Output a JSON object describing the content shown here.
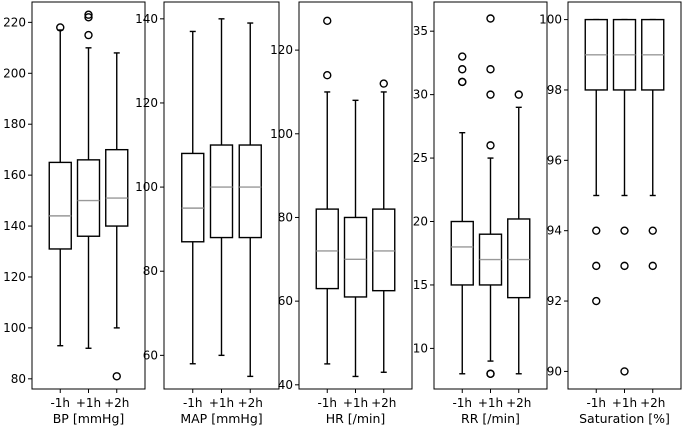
{
  "chart_data": [
    {
      "type": "box",
      "xlabel": "BP [mmHg]",
      "categories": [
        "-1h",
        "+1h",
        "+2h"
      ],
      "yticks": [
        80,
        100,
        120,
        140,
        160,
        180,
        200,
        220
      ],
      "ylim": [
        76,
        228
      ],
      "boxes": [
        {
          "whislo": 93,
          "q1": 131,
          "med": 144,
          "q3": 165,
          "whishi": 217,
          "fliers": [
            218
          ]
        },
        {
          "whislo": 92,
          "q1": 136,
          "med": 150,
          "q3": 166,
          "whishi": 210,
          "fliers": [
            215,
            222,
            223
          ]
        },
        {
          "whislo": 100,
          "q1": 140,
          "med": 151,
          "q3": 170,
          "whishi": 208,
          "fliers": [
            81
          ]
        }
      ]
    },
    {
      "type": "box",
      "xlabel": "MAP [mmHg]",
      "categories": [
        "-1h",
        "+1h",
        "+2h"
      ],
      "yticks": [
        60,
        80,
        100,
        120,
        140
      ],
      "ylim": [
        52,
        144
      ],
      "boxes": [
        {
          "whislo": 58,
          "q1": 87,
          "med": 95,
          "q3": 108,
          "whishi": 137,
          "fliers": []
        },
        {
          "whislo": 60,
          "q1": 88,
          "med": 100,
          "q3": 110,
          "whishi": 140,
          "fliers": []
        },
        {
          "whislo": 55,
          "q1": 88,
          "med": 100,
          "q3": 110,
          "whishi": 139,
          "fliers": []
        }
      ]
    },
    {
      "type": "box",
      "xlabel": "HR [/min]",
      "categories": [
        "-1h",
        "+1h",
        "+2h"
      ],
      "yticks": [
        40,
        60,
        80,
        100,
        120
      ],
      "ylim": [
        39,
        131.5
      ],
      "boxes": [
        {
          "whislo": 45,
          "q1": 63,
          "med": 72,
          "q3": 82,
          "whishi": 110,
          "fliers": [
            114,
            127
          ]
        },
        {
          "whislo": 42,
          "q1": 61,
          "med": 70,
          "q3": 80,
          "whishi": 108,
          "fliers": []
        },
        {
          "whislo": 43,
          "q1": 62.5,
          "med": 72,
          "q3": 82,
          "whishi": 110,
          "fliers": [
            112
          ]
        }
      ]
    },
    {
      "type": "box",
      "xlabel": "RR [/min]",
      "categories": [
        "-1h",
        "+1h",
        "+2h"
      ],
      "yticks": [
        10,
        15,
        20,
        25,
        30,
        35
      ],
      "ylim": [
        6.8,
        37.3
      ],
      "boxes": [
        {
          "whislo": 8,
          "q1": 15,
          "med": 18,
          "q3": 20,
          "whishi": 27,
          "fliers": [
            31,
            31,
            32,
            33
          ]
        },
        {
          "whislo": 9,
          "q1": 15,
          "med": 17,
          "q3": 19,
          "whishi": 25,
          "fliers": [
            8,
            8,
            26,
            30,
            32,
            36
          ]
        },
        {
          "whislo": 8,
          "q1": 14,
          "med": 17,
          "q3": 20.2,
          "whishi": 29,
          "fliers": [
            30
          ]
        }
      ]
    },
    {
      "type": "box",
      "xlabel": "Saturation [%]",
      "categories": [
        "-1h",
        "+1h",
        "+2h"
      ],
      "yticks": [
        90,
        92,
        94,
        96,
        98,
        100
      ],
      "ylim": [
        89.5,
        100.5
      ],
      "boxes": [
        {
          "whislo": 95,
          "q1": 98,
          "med": 99,
          "q3": 100,
          "whishi": 100,
          "fliers": [
            94,
            93,
            92
          ]
        },
        {
          "whislo": 95,
          "q1": 98,
          "med": 99,
          "q3": 100,
          "whishi": 100,
          "fliers": [
            94,
            93,
            90
          ]
        },
        {
          "whislo": 95,
          "q1": 98,
          "med": 99,
          "q3": 100,
          "whishi": 100,
          "fliers": [
            94,
            93
          ]
        }
      ]
    }
  ]
}
